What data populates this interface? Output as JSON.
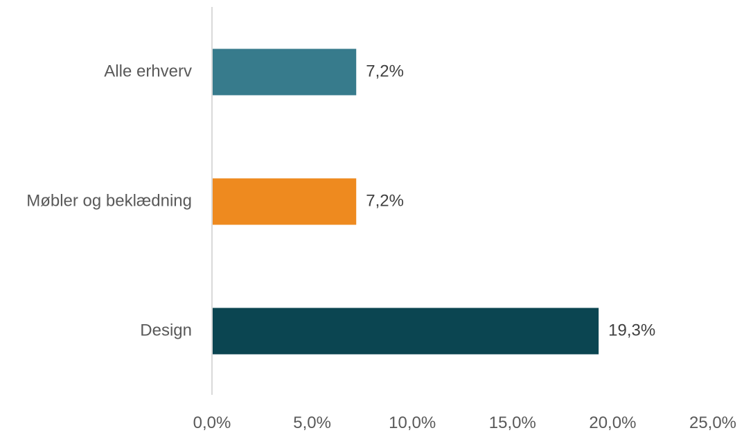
{
  "chart_data": {
    "type": "bar",
    "orientation": "horizontal",
    "categories": [
      "Alle erhverv",
      "Møbler og beklædning",
      "Design"
    ],
    "values": [
      7.2,
      7.2,
      19.3
    ],
    "data_labels": [
      "7,2%",
      "7,2%",
      "19,3%"
    ],
    "colors": [
      "#377b8c",
      "#ee8a1f",
      "#0b4551"
    ],
    "xlim": [
      0,
      25
    ],
    "x_ticks": [
      0,
      5,
      10,
      15,
      20,
      25
    ],
    "x_tick_labels": [
      "0,0%",
      "5,0%",
      "10,0%",
      "15,0%",
      "20,0%",
      "25,0%"
    ],
    "grid": false,
    "legend": "none",
    "axis_color": "#d9d9d9"
  }
}
